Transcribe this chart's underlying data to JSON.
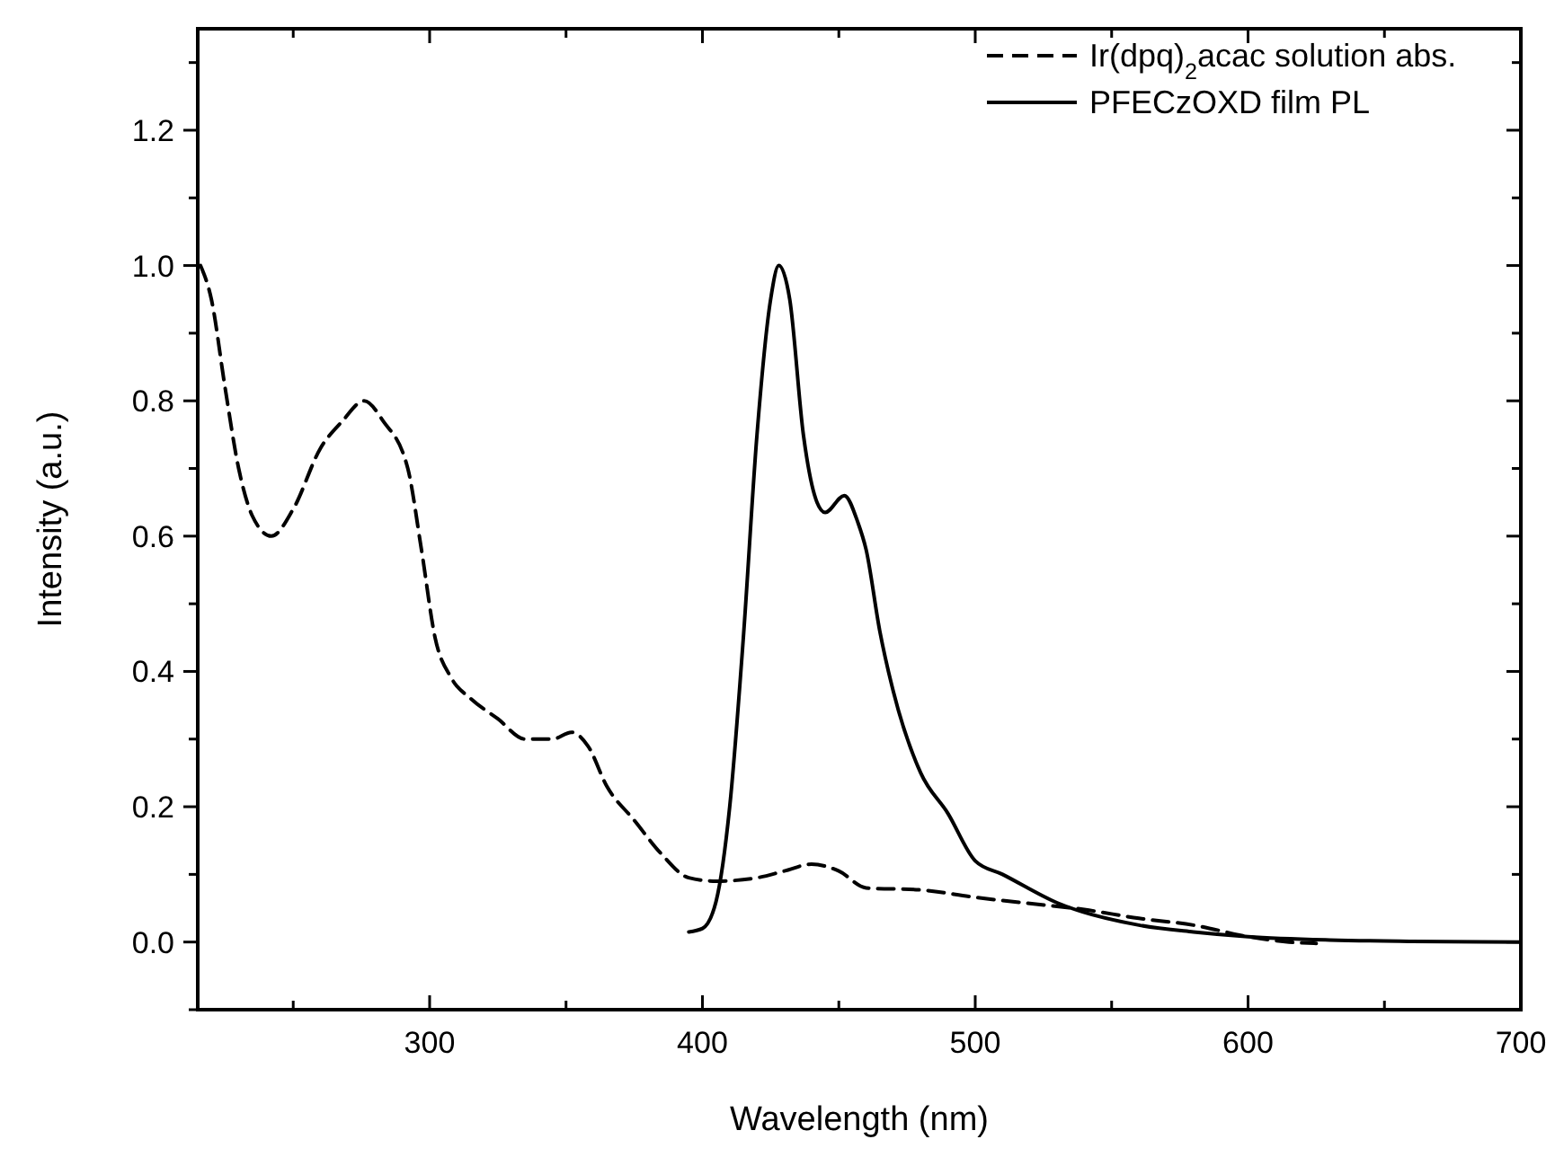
{
  "chart_data": {
    "type": "line",
    "xlabel": "Wavelength (nm)",
    "ylabel": "Intensity (a.u.)",
    "xlim": [
      215,
      700
    ],
    "ylim": [
      -0.1,
      1.35
    ],
    "xticks": [
      {
        "value": 250,
        "label": null
      },
      300,
      {
        "value": 350,
        "label": null
      },
      400,
      {
        "value": 450,
        "label": null
      },
      500,
      {
        "value": 550,
        "label": null
      },
      600,
      {
        "value": 650,
        "label": null
      },
      700
    ],
    "yticks": [
      {
        "value": -0.1,
        "label": null
      },
      {
        "value": 0,
        "label": "0.0"
      },
      {
        "value": 0.1,
        "label": null
      },
      0.2,
      {
        "value": 0.3,
        "label": null
      },
      0.4,
      {
        "value": 0.5,
        "label": null
      },
      0.6,
      {
        "value": 0.7,
        "label": null
      },
      0.8,
      {
        "value": 0.9,
        "label": null
      },
      {
        "value": 1,
        "label": "1.0"
      },
      {
        "value": 1.1,
        "label": null
      },
      1.2,
      {
        "value": 1.3,
        "label": null
      }
    ],
    "grid": false,
    "legend": "top right",
    "marker": "none",
    "series": [
      {
        "name": "Ir(dpq)$_{2}$acac solution abs.",
        "color": "#000000",
        "line_style": "dashed",
        "x": [
          216,
          220,
          225,
          230,
          235,
          242,
          250,
          260,
          268,
          276,
          283,
          292,
          297,
          302,
          308,
          315,
          325,
          335,
          345,
          352,
          358,
          365,
          375,
          385,
          395,
          405,
          420,
          430,
          440,
          450,
          460,
          480,
          500,
          520,
          540,
          560,
          580,
          600,
          615,
          625
        ],
        "values": [
          1.0,
          0.95,
          0.82,
          0.7,
          0.63,
          0.6,
          0.64,
          0.73,
          0.77,
          0.8,
          0.77,
          0.7,
          0.58,
          0.45,
          0.39,
          0.36,
          0.33,
          0.3,
          0.3,
          0.31,
          0.29,
          0.23,
          0.18,
          0.13,
          0.095,
          0.09,
          0.095,
          0.105,
          0.115,
          0.105,
          0.08,
          0.077,
          0.066,
          0.057,
          0.048,
          0.035,
          0.025,
          0.008,
          0.0,
          -0.002
        ]
      },
      {
        "name": "PFECzOXD film PL",
        "color": "#000000",
        "line_style": "solid",
        "x": [
          395,
          400,
          405,
          410,
          415,
          420,
          425,
          428,
          432,
          437,
          442,
          445,
          452,
          457,
          460,
          465,
          470,
          480,
          490,
          500,
          510,
          530,
          560,
          580,
          600,
          630,
          660,
          700
        ],
        "values": [
          0.015,
          0.02,
          0.06,
          0.2,
          0.45,
          0.75,
          0.95,
          1.0,
          0.95,
          0.75,
          0.65,
          0.635,
          0.66,
          0.62,
          0.58,
          0.46,
          0.37,
          0.25,
          0.19,
          0.12,
          0.1,
          0.058,
          0.025,
          0.015,
          0.008,
          0.003,
          0.001,
          0.0
        ]
      }
    ]
  }
}
